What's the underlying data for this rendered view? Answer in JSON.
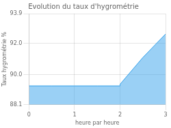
{
  "chart_data": {
    "type": "area",
    "title": "Evolution du taux d'hygrométrie",
    "xlabel": "heure par heure",
    "ylabel": "Taux hygrométrie %",
    "x": [
      0,
      0.5,
      1,
      1.5,
      2,
      2.0,
      2.5,
      3
    ],
    "values": [
      89.3,
      89.3,
      89.3,
      89.3,
      89.3,
      89.4,
      91.1,
      92.6
    ],
    "xlim": [
      0,
      3
    ],
    "ylim": [
      88.1,
      93.9
    ],
    "xticks": [
      0,
      1,
      2,
      3
    ],
    "yticks": [
      88.1,
      {
        "value": 90.0,
        "label": "90.0"
      },
      {
        "value": 92.0,
        "label": "92.0"
      },
      93.9
    ],
    "grid": true
  }
}
